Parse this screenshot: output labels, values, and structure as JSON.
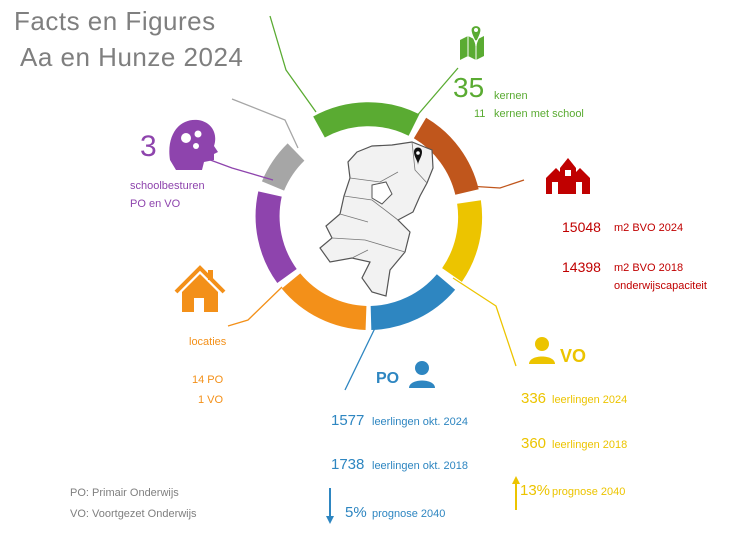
{
  "title": {
    "line1": "Facts    en    Figures",
    "line2": "Aa en Hunze 2024"
  },
  "colors": {
    "green": "#5aab32",
    "red": "#c00000",
    "brown": "#c0561c",
    "yellow": "#ecc400",
    "blue": "#2e86c1",
    "orange": "#f39019",
    "purple": "#8e44ad",
    "gray": "#a6a6a6"
  },
  "kernen": {
    "number": "35",
    "label": "kernen",
    "sub_number": "11",
    "sub_label": "kernen met school",
    "icon": "map-pin-icon"
  },
  "schoolbesturen": {
    "number": "3",
    "label": "schoolbesturen",
    "sub": "PO en VO",
    "icon": "head-gears-icon"
  },
  "bvo": {
    "icon": "school-buildings-icon",
    "v2024": "15048",
    "label2024": "m2 BVO 2024",
    "v2018": "14398",
    "label2018": "m2 BVO 2018",
    "sub": "onderwijscapaciteit"
  },
  "locaties": {
    "label": "locaties",
    "po": "14 PO",
    "vo": "1 VO",
    "icon": "house-icon"
  },
  "po": {
    "heading": "PO",
    "icon": "person-icon",
    "n2024": "1577",
    "l2024": "leerlingen okt. 2024",
    "n2018": "1738",
    "l2018": "leerlingen okt. 2018",
    "prog": "5%",
    "prog_label": "prognose 2040",
    "trend": "down"
  },
  "vo": {
    "heading": "VO",
    "icon": "person-icon",
    "n2024": "336",
    "l2024": "leerlingen 2024",
    "n2018": "360",
    "l2018": "leerlingen 2018",
    "prog": "13%",
    "prog_label": "prognose 2040",
    "trend": "up"
  },
  "legend": {
    "po": "PO: Primair Onderwijs",
    "vo": "VO: Voortgezet Onderwijs"
  }
}
